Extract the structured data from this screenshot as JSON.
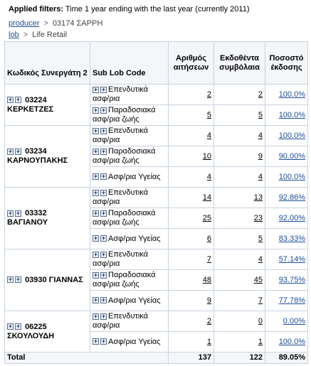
{
  "filters": {
    "label": "Applied filters:",
    "text": "Time 1 year ending with the last year (currently 2011)"
  },
  "breadcrumb1": {
    "link": "producer",
    "sep": ">",
    "current": "03174 ΣΑΡΡΗ"
  },
  "breadcrumb2": {
    "link": "lob",
    "sep": ">",
    "current": "Life Retail"
  },
  "table": {
    "col_partner": "Κωδικός Συνεργάτη 2",
    "col_sublob": "Sub Lob Code",
    "col_apps": "Αριθμός αιτήσεων",
    "col_policies": "Εκδοθέντα συμβόλαια",
    "col_rate": "Ποσοστό έκδοσης",
    "expand_glyph": "+",
    "groups": [
      {
        "partner": "03224 ΚΕΡΚΕΤΖΕΣ",
        "rows": [
          {
            "sub": "Επενδυτικά ασφ/ρια",
            "apps": "2",
            "policies": "2",
            "rate": "100.0%"
          },
          {
            "sub": "Παραδοσιακά ασφ/ρια ζωής",
            "apps": "5",
            "policies": "5",
            "rate": "100.0%"
          }
        ]
      },
      {
        "partner": "03234 ΚΑΡΝΟΥΠΑΚΗΣ",
        "rows": [
          {
            "sub": "Επενδυτικά ασφ/ρια",
            "apps": "4",
            "policies": "4",
            "rate": "100.0%"
          },
          {
            "sub": "Παραδοσιακά ασφ/ρια ζωής",
            "apps": "10",
            "policies": "9",
            "rate": "90.00%"
          },
          {
            "sub": "Ασφ/ρια Υγείας",
            "apps": "4",
            "policies": "4",
            "rate": "100.0%"
          }
        ]
      },
      {
        "partner": "03332 ΒΑΓΙΑΝΟΥ",
        "rows": [
          {
            "sub": "Επενδυτικά ασφ/ρια",
            "apps": "14",
            "policies": "13",
            "rate": "92.86%"
          },
          {
            "sub": "Παραδοσιακά ασφ/ρια ζωής",
            "apps": "25",
            "policies": "23",
            "rate": "92.00%"
          },
          {
            "sub": "Ασφ/ρια Υγείας",
            "apps": "6",
            "policies": "5",
            "rate": "83.33%"
          }
        ]
      },
      {
        "partner": "03930 ΓΙΑΝΝΑΣ",
        "rows": [
          {
            "sub": "Επενδυτικά ασφ/ρια",
            "apps": "7",
            "policies": "4",
            "rate": "57.14%"
          },
          {
            "sub": "Παραδοσιακά ασφ/ρια ζωής",
            "apps": "48",
            "policies": "45",
            "rate": "93.75%"
          },
          {
            "sub": "Ασφ/ρια Υγείας",
            "apps": "9",
            "policies": "7",
            "rate": "77.78%"
          }
        ]
      },
      {
        "partner": "06225 ΣΚΟΥΛΟΥΔΗ",
        "rows": [
          {
            "sub": "Επενδυτικά ασφ/ρια",
            "apps": "2",
            "policies": "0",
            "rate": "0.00%"
          },
          {
            "sub": "Ασφ/ρια Υγείας",
            "apps": "1",
            "policies": "1",
            "rate": "100.0%"
          }
        ]
      }
    ],
    "total": {
      "label": "Total",
      "apps": "137",
      "policies": "122",
      "rate": "89.05%"
    }
  }
}
